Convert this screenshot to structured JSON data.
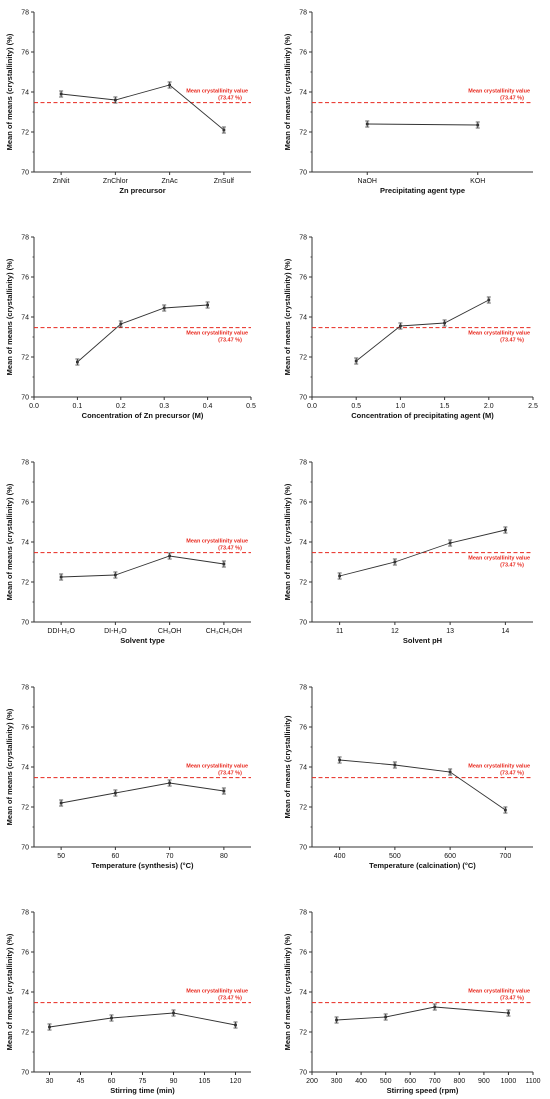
{
  "chart_data": [
    {
      "type": "line",
      "xlabel": "Zn precursor",
      "ylabel": "Mean of means (crystallinity) (%)",
      "x_type": "category",
      "categories": [
        "ZnNit",
        "ZnChlor",
        "ZnAc",
        "ZnSulf"
      ],
      "values": [
        73.9,
        73.6,
        74.35,
        72.1
      ],
      "errors": [
        0.15,
        0.15,
        0.15,
        0.15
      ],
      "ylim": [
        70,
        78
      ],
      "yticks": [
        70,
        72,
        74,
        76,
        78
      ],
      "mean_line": 73.47,
      "mean_label": "Mean crystallinity value",
      "mean_value_label": "(73.47 %)",
      "label_position": "above"
    },
    {
      "type": "line",
      "xlabel": "Precipitating agent type",
      "ylabel": "Mean of means (crystallinity) (%)",
      "x_type": "category",
      "categories": [
        "NaOH",
        "KOH"
      ],
      "values": [
        72.4,
        72.35
      ],
      "errors": [
        0.15,
        0.15
      ],
      "ylim": [
        70,
        78
      ],
      "yticks": [
        70,
        72,
        74,
        76,
        78
      ],
      "mean_line": 73.47,
      "mean_label": "Mean crystallinity value",
      "mean_value_label": "(73.47 %)",
      "label_position": "above"
    },
    {
      "type": "line",
      "xlabel": "Concentration of Zn precursor (M)",
      "ylabel": "Mean of means (crystallinity) (%)",
      "x_type": "numeric",
      "x": [
        0.1,
        0.2,
        0.3,
        0.4
      ],
      "values": [
        71.75,
        73.65,
        74.45,
        74.6
      ],
      "errors": [
        0.15,
        0.15,
        0.15,
        0.15
      ],
      "xlim": [
        0.0,
        0.5
      ],
      "xticks": [
        0.0,
        0.1,
        0.2,
        0.3,
        0.4,
        0.5
      ],
      "xtick_labels": [
        "0.0",
        "0.1",
        "0.2",
        "0.3",
        "0.4",
        "0.5"
      ],
      "ylim": [
        70,
        78
      ],
      "yticks": [
        70,
        72,
        74,
        76,
        78
      ],
      "mean_line": 73.47,
      "mean_label": "Mean crystallinity value",
      "mean_value_label": "(73.47 %)",
      "label_position": "below"
    },
    {
      "type": "line",
      "xlabel": "Concentration of precipitating agent (M)",
      "ylabel": "Mean of means (crystallinity) (%)",
      "x_type": "numeric",
      "x": [
        0.5,
        1.0,
        1.5,
        2.0
      ],
      "values": [
        71.8,
        73.55,
        73.7,
        74.85
      ],
      "errors": [
        0.15,
        0.15,
        0.15,
        0.15
      ],
      "xlim": [
        0.0,
        2.5
      ],
      "xticks": [
        0.0,
        0.5,
        1.0,
        1.5,
        2.0,
        2.5
      ],
      "xtick_labels": [
        "0.0",
        "0.5",
        "1.0",
        "1.5",
        "2.0",
        "2.5"
      ],
      "ylim": [
        70,
        78
      ],
      "yticks": [
        70,
        72,
        74,
        76,
        78
      ],
      "mean_line": 73.47,
      "mean_label": "Mean crystallinity value",
      "mean_value_label": "(73.47 %)",
      "label_position": "below"
    },
    {
      "type": "line",
      "xlabel": "Solvent type",
      "ylabel": "Mean of means (crystallinity) (%)",
      "x_type": "category",
      "categories": [
        "DDI-H₂O",
        "DI-H₂O",
        "CH₃OH",
        "CH₃CH₂OH"
      ],
      "values": [
        72.25,
        72.35,
        73.3,
        72.9
      ],
      "errors": [
        0.15,
        0.15,
        0.15,
        0.15
      ],
      "ylim": [
        70,
        78
      ],
      "yticks": [
        70,
        72,
        74,
        76,
        78
      ],
      "mean_line": 73.47,
      "mean_label": "Mean crystallinity value",
      "mean_value_label": "(73.47 %)",
      "label_position": "above"
    },
    {
      "type": "line",
      "xlabel": "Solvent pH",
      "ylabel": "Mean of means (crystallinity) (%)",
      "x_type": "numeric",
      "x": [
        11,
        12,
        13,
        14
      ],
      "values": [
        72.3,
        73.0,
        73.95,
        74.6
      ],
      "errors": [
        0.15,
        0.15,
        0.15,
        0.15
      ],
      "xlim": [
        10.5,
        14.5
      ],
      "xticks": [
        11,
        12,
        13,
        14
      ],
      "xtick_labels": [
        "11",
        "12",
        "13",
        "14"
      ],
      "ylim": [
        70,
        78
      ],
      "yticks": [
        70,
        72,
        74,
        76,
        78
      ],
      "mean_line": 73.47,
      "mean_label": "Mean crystallinity value",
      "mean_value_label": "(73.47 %)",
      "label_position": "below"
    },
    {
      "type": "line",
      "xlabel": "Temperature (synthesis) (°C)",
      "ylabel": "Mean of means (crystallinity) (%)",
      "x_type": "numeric",
      "x": [
        50,
        60,
        70,
        80
      ],
      "values": [
        72.2,
        72.7,
        73.2,
        72.8
      ],
      "errors": [
        0.15,
        0.15,
        0.15,
        0.15
      ],
      "xlim": [
        45,
        85
      ],
      "xticks": [
        50,
        60,
        70,
        80
      ],
      "xtick_labels": [
        "50",
        "60",
        "70",
        "80"
      ],
      "ylim": [
        70,
        78
      ],
      "yticks": [
        70,
        72,
        74,
        76,
        78
      ],
      "mean_line": 73.47,
      "mean_label": "Mean crystallinity value",
      "mean_value_label": "(73.47 %)",
      "label_position": "above"
    },
    {
      "type": "line",
      "xlabel": "Temperature (calcination) (°C)",
      "ylabel": "Mean of means (crystallinity)",
      "x_type": "numeric",
      "x": [
        400,
        500,
        600,
        700
      ],
      "values": [
        74.35,
        74.1,
        73.75,
        71.85
      ],
      "errors": [
        0.15,
        0.15,
        0.15,
        0.15
      ],
      "xlim": [
        350,
        750
      ],
      "xticks": [
        400,
        500,
        600,
        700
      ],
      "xtick_labels": [
        "400",
        "500",
        "600",
        "700"
      ],
      "ylim": [
        70,
        78
      ],
      "yticks": [
        70,
        72,
        74,
        76,
        78
      ],
      "mean_line": 73.47,
      "mean_label": "Mean crystallinity value",
      "mean_value_label": "(73.47 %)",
      "label_position": "above"
    },
    {
      "type": "line",
      "xlabel": "Stirring time (min)",
      "ylabel": "Mean of means (crystallinity) (%)",
      "x_type": "numeric",
      "x": [
        30,
        60,
        90,
        120
      ],
      "values": [
        72.25,
        72.7,
        72.95,
        72.35
      ],
      "errors": [
        0.15,
        0.15,
        0.15,
        0.15
      ],
      "xlim": [
        22.5,
        127.5
      ],
      "xticks": [
        30,
        45,
        60,
        75,
        90,
        105,
        120
      ],
      "xtick_labels": [
        "30",
        "45",
        "60",
        "75",
        "90",
        "105",
        "120"
      ],
      "ylim": [
        70,
        78
      ],
      "yticks": [
        70,
        72,
        74,
        76,
        78
      ],
      "mean_line": 73.47,
      "mean_label": "Mean crystallinity value",
      "mean_value_label": "(73.47 %)",
      "label_position": "above"
    },
    {
      "type": "line",
      "xlabel": "Stirring speed (rpm)",
      "ylabel": "Mean of means (crystallinity) (%)",
      "x_type": "numeric",
      "x": [
        300,
        500,
        700,
        1000
      ],
      "values": [
        72.6,
        72.75,
        73.25,
        72.95
      ],
      "errors": [
        0.15,
        0.15,
        0.15,
        0.15
      ],
      "xlim": [
        200,
        1100
      ],
      "xticks": [
        200,
        300,
        400,
        500,
        600,
        700,
        800,
        900,
        1000,
        1100
      ],
      "xtick_labels": [
        "200",
        "300",
        "400",
        "500",
        "600",
        "700",
        "800",
        "900",
        "1000",
        "1100"
      ],
      "ylim": [
        70,
        78
      ],
      "yticks": [
        70,
        72,
        74,
        76,
        78
      ],
      "mean_line": 73.47,
      "mean_label": "Mean crystallinity value",
      "mean_value_label": "(73.47 %)",
      "label_position": "above"
    }
  ],
  "colors": {
    "data_line": "#333333",
    "mean_line": "#e8281e",
    "axis": "#333333",
    "text": "#111111"
  }
}
